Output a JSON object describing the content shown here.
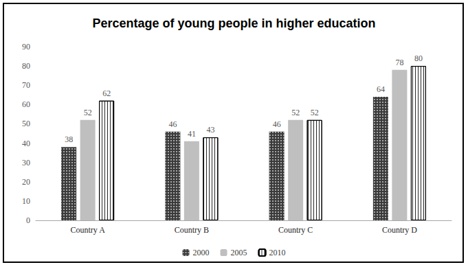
{
  "chart_data": {
    "type": "bar",
    "title": "Percentage of young people in higher education",
    "categories": [
      "Country A",
      "Country B",
      "Country C",
      "Country D"
    ],
    "series": [
      {
        "name": "2000",
        "color": "#3a3a3a",
        "values": [
          38,
          46,
          46,
          64
        ]
      },
      {
        "name": "2005",
        "color": "#bfbfbf",
        "values": [
          52,
          41,
          52,
          78
        ]
      },
      {
        "name": "2010",
        "color": "#ffffff",
        "values": [
          62,
          43,
          52,
          80
        ]
      }
    ],
    "ylim": [
      0,
      90
    ],
    "yticks": [
      0,
      10,
      20,
      30,
      40,
      50,
      60,
      70,
      80,
      90
    ],
    "grid": false,
    "legend": "bottom",
    "data_labels": true
  }
}
